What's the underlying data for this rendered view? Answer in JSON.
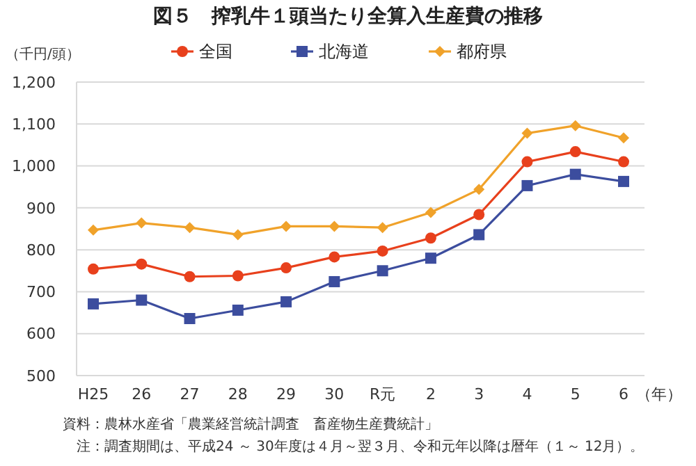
{
  "chart_data": {
    "type": "line",
    "title": "図５　搾乳牛１頭当たり全算入生産費の推移",
    "ylabel": "（千円/頭）",
    "xlabel": "（年）",
    "categories": [
      "H25",
      "26",
      "27",
      "28",
      "29",
      "30",
      "R元",
      "2",
      "3",
      "4",
      "5",
      "6"
    ],
    "series": [
      {
        "name": "全国",
        "color": "#e8401c",
        "marker": "circle",
        "values": [
          754,
          766,
          736,
          738,
          757,
          783,
          797,
          828,
          884,
          1010,
          1034,
          1010
        ]
      },
      {
        "name": "北海道",
        "color": "#3c4d9e",
        "marker": "square",
        "values": [
          671,
          680,
          636,
          656,
          676,
          724,
          750,
          780,
          836,
          953,
          980,
          963
        ]
      },
      {
        "name": "都府県",
        "color": "#f0a22a",
        "marker": "diamond",
        "values": [
          847,
          864,
          853,
          836,
          856,
          856,
          853,
          889,
          944,
          1078,
          1096,
          1067
        ]
      }
    ],
    "ylim": [
      500,
      1200
    ],
    "yticks": [
      {
        "value": 500,
        "label": "500"
      },
      {
        "value": 600,
        "label": "600"
      },
      {
        "value": 700,
        "label": "700"
      },
      {
        "value": 800,
        "label": "800"
      },
      {
        "value": 900,
        "label": "900"
      },
      {
        "value": 1000,
        "label": "1,000"
      },
      {
        "value": 1100,
        "label": "1,100"
      },
      {
        "value": 1200,
        "label": "1,200"
      }
    ],
    "grid": "y",
    "legend": "top",
    "line_style": "solid",
    "annotations": [
      "資料：農林水産省「農業経営統計調査　畜産物生産費統計」",
      "注：調査期間は、平成24 ～ 30年度は４月～翌３月、令和元年以降は暦年（１～ 12月）。"
    ]
  }
}
